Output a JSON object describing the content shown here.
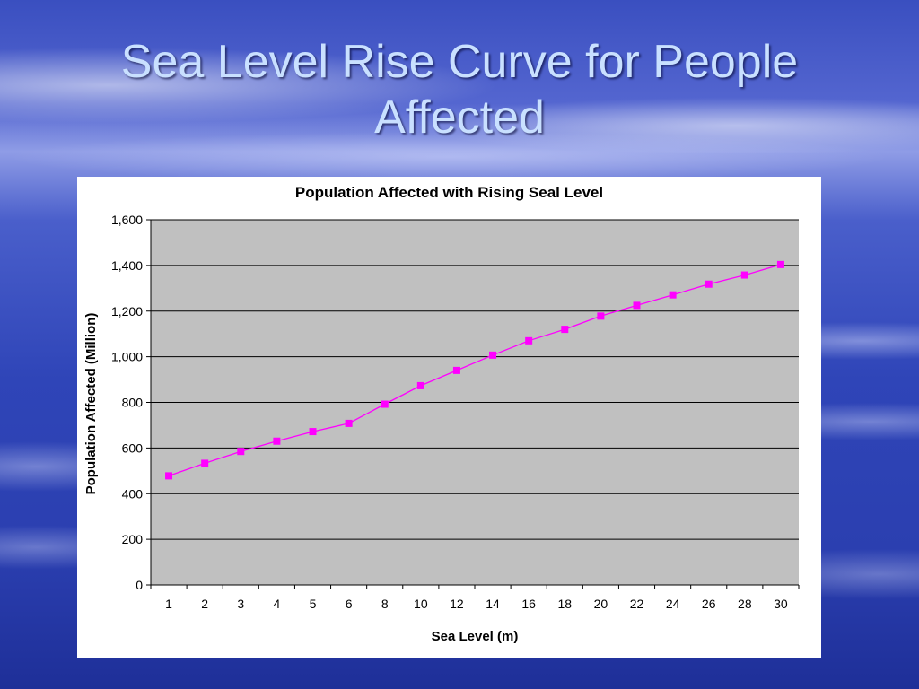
{
  "slide": {
    "title_line1": "Sea Level Rise Curve for People",
    "title_line2": "Affected"
  },
  "colors": {
    "plot_background": "#c0c0c0",
    "series": "#ff00ff"
  },
  "chart_data": {
    "type": "line",
    "title": "Population Affected with Rising Seal Level",
    "xlabel": "Sea Level (m)",
    "ylabel": "Population Affected (Million)",
    "categories": [
      "1",
      "2",
      "3",
      "4",
      "5",
      "6",
      "8",
      "10",
      "12",
      "14",
      "16",
      "18",
      "20",
      "22",
      "24",
      "26",
      "28",
      "30"
    ],
    "series": [
      {
        "values": [
          478,
          533,
          585,
          630,
          672,
          708,
          792,
          873,
          940,
          1007,
          1070,
          1120,
          1178,
          1225,
          1271,
          1318,
          1358,
          1404
        ]
      }
    ],
    "ylim": [
      0,
      1600
    ],
    "yticks": [
      "0",
      "200",
      "400",
      "600",
      "800",
      "1,000",
      "1,200",
      "1,400",
      "1,600"
    ],
    "grid": true,
    "legend": "none"
  }
}
